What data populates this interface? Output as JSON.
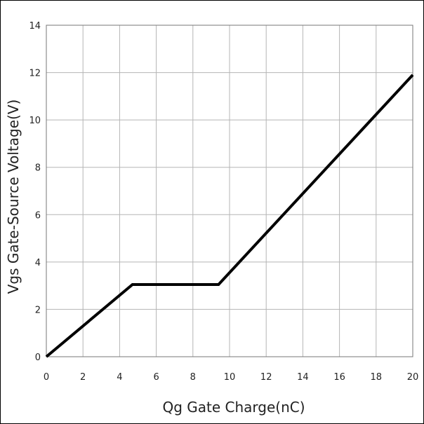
{
  "chart_data": {
    "type": "line",
    "title": "",
    "xlabel": "Qg Gate Charge(nC)",
    "ylabel": "Vgs Gate-Source Voltage(V)",
    "xlim": [
      0,
      20
    ],
    "ylim": [
      0,
      14
    ],
    "xticks": [
      0,
      2,
      4,
      6,
      8,
      10,
      12,
      14,
      16,
      18,
      20
    ],
    "yticks": [
      0,
      2,
      4,
      6,
      8,
      10,
      12,
      14
    ],
    "grid": true,
    "legend": "none",
    "series": [
      {
        "x": [
          0,
          4.7,
          9.4,
          20
        ],
        "y": [
          0,
          3.05,
          3.05,
          11.9
        ],
        "color": "#000000"
      }
    ]
  }
}
